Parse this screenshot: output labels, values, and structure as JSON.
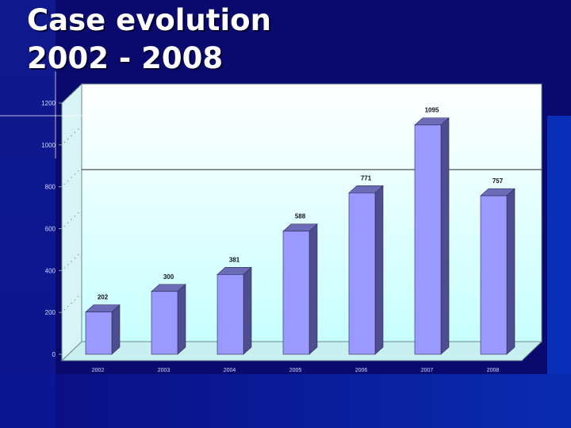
{
  "slide": {
    "title_line1": "Case evolution",
    "title_line2": "2002 - 2008"
  },
  "colors": {
    "background": "#0a0a6e",
    "bar_front": "#9999ff",
    "bar_side": "#4d4d8f",
    "bar_top": "#6b6bb8",
    "plot_wall": "#e8ffff"
  },
  "chart_data": {
    "type": "bar",
    "categories": [
      "2002",
      "2003",
      "2004",
      "2005",
      "2006",
      "2007",
      "2008"
    ],
    "values": [
      202,
      300,
      381,
      588,
      771,
      1095,
      757
    ],
    "value_labels": [
      "202",
      "300",
      "381",
      "588",
      "771",
      "1095",
      "757"
    ],
    "ylim": [
      0,
      1200
    ],
    "yticks": [
      "0",
      "200",
      "400",
      "600",
      "800",
      "1000",
      "1200"
    ],
    "grid": false,
    "legend": "none"
  }
}
